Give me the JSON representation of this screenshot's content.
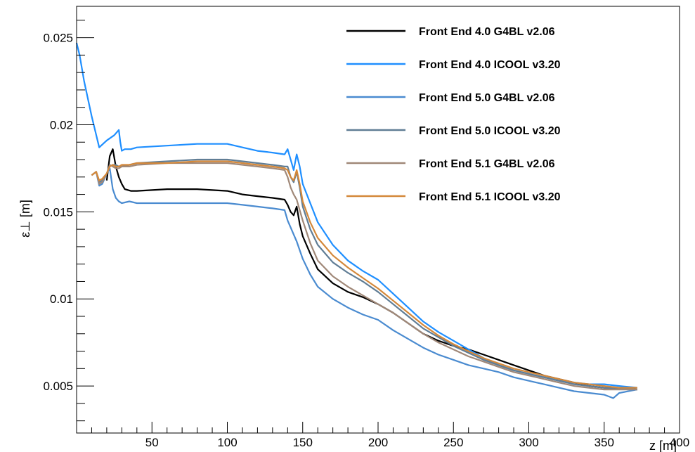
{
  "chart_data": {
    "type": "line",
    "title": "",
    "xlabel": "z [m]",
    "ylabel": "ε⊥ [m]",
    "xlim": [
      0,
      400
    ],
    "ylim": [
      0.0023,
      0.0268
    ],
    "x_ticks": [
      50,
      100,
      150,
      200,
      250,
      300,
      350,
      400
    ],
    "x_tick_labels": [
      "50",
      "100",
      "150",
      "200",
      "250",
      "300",
      "350",
      "400"
    ],
    "y_ticks": [
      0.005,
      0.01,
      0.015,
      0.02,
      0.025
    ],
    "y_tick_labels": [
      "0.005",
      "0.01",
      "0.015",
      "0.02",
      "0.025"
    ],
    "grid": false,
    "legend_position": "top-right",
    "series": [
      {
        "name": "Front End 4.0 G4BL v2.06",
        "color": "#000000",
        "x": [
          20,
          22,
          24,
          26,
          28,
          30,
          32,
          36,
          40,
          60,
          80,
          100,
          110,
          120,
          130,
          138,
          140,
          142,
          144,
          146,
          148,
          150,
          155,
          160,
          170,
          180,
          190,
          200,
          210,
          220,
          230,
          240,
          250,
          260,
          270,
          280,
          290,
          300,
          310,
          320,
          330,
          340,
          350,
          360,
          372
        ],
        "y": [
          0.0168,
          0.0182,
          0.0186,
          0.0176,
          0.017,
          0.0166,
          0.0163,
          0.0162,
          0.0162,
          0.0163,
          0.0163,
          0.0162,
          0.016,
          0.0159,
          0.0158,
          0.0157,
          0.0154,
          0.015,
          0.0148,
          0.0153,
          0.0143,
          0.0136,
          0.0126,
          0.0117,
          0.0109,
          0.0104,
          0.0101,
          0.0097,
          0.0092,
          0.0086,
          0.008,
          0.0076,
          0.0073,
          0.0071,
          0.0068,
          0.0065,
          0.0062,
          0.0059,
          0.0056,
          0.0054,
          0.0052,
          0.005,
          0.0049,
          0.0049,
          0.0048
        ]
      },
      {
        "name": "Front End 4.0 ICOOL v3.20",
        "color": "#1f8fff",
        "x": [
          0,
          2,
          5,
          10,
          15,
          20,
          25,
          28,
          29,
          30,
          32,
          36,
          40,
          60,
          80,
          100,
          110,
          120,
          130,
          138,
          140,
          142,
          144,
          146,
          148,
          150,
          155,
          160,
          170,
          180,
          190,
          200,
          210,
          220,
          230,
          240,
          250,
          260,
          270,
          280,
          290,
          300,
          310,
          320,
          330,
          340,
          350,
          360,
          372
        ],
        "y": [
          0.0247,
          0.024,
          0.0225,
          0.0205,
          0.0187,
          0.0191,
          0.0194,
          0.0197,
          0.019,
          0.0185,
          0.0186,
          0.0186,
          0.0187,
          0.0188,
          0.0189,
          0.0189,
          0.0187,
          0.0185,
          0.0184,
          0.0183,
          0.0186,
          0.018,
          0.0174,
          0.0183,
          0.0176,
          0.0166,
          0.0155,
          0.0144,
          0.0131,
          0.0122,
          0.0116,
          0.0111,
          0.0103,
          0.0095,
          0.0087,
          0.0081,
          0.0076,
          0.0071,
          0.0066,
          0.0062,
          0.0059,
          0.0057,
          0.0055,
          0.0053,
          0.0052,
          0.0051,
          0.0051,
          0.005,
          0.0049
        ]
      },
      {
        "name": "Front End 5.0 G4BL v2.06",
        "color": "#4a8bd0",
        "x": [
          10,
          13,
          15,
          17,
          20,
          22,
          24,
          26,
          28,
          30,
          35,
          40,
          60,
          80,
          100,
          110,
          120,
          130,
          138,
          140,
          142,
          144,
          146,
          148,
          150,
          155,
          160,
          170,
          180,
          190,
          200,
          210,
          220,
          230,
          240,
          250,
          260,
          270,
          280,
          290,
          300,
          310,
          320,
          330,
          340,
          350,
          356,
          360,
          372
        ],
        "y": [
          0.0171,
          0.0173,
          0.0165,
          0.0166,
          0.0172,
          0.0175,
          0.0163,
          0.0158,
          0.0156,
          0.0155,
          0.0156,
          0.0155,
          0.0155,
          0.0155,
          0.0155,
          0.0154,
          0.0153,
          0.0152,
          0.0151,
          0.0145,
          0.0141,
          0.0137,
          0.0133,
          0.0128,
          0.0123,
          0.0114,
          0.0107,
          0.01,
          0.0095,
          0.0091,
          0.0088,
          0.0082,
          0.0077,
          0.0072,
          0.0068,
          0.0065,
          0.0062,
          0.006,
          0.0058,
          0.0055,
          0.0053,
          0.0051,
          0.0049,
          0.0047,
          0.0046,
          0.0045,
          0.0043,
          0.0046,
          0.0048
        ]
      },
      {
        "name": "Front End 5.0 ICOOL v3.20",
        "color": "#607d95",
        "x": [
          10,
          13,
          15,
          17,
          20,
          22,
          24,
          26,
          28,
          30,
          35,
          40,
          60,
          80,
          100,
          110,
          120,
          130,
          138,
          140,
          142,
          144,
          146,
          148,
          150,
          155,
          160,
          170,
          180,
          190,
          200,
          210,
          220,
          230,
          240,
          250,
          260,
          270,
          280,
          290,
          300,
          310,
          320,
          330,
          340,
          350,
          360,
          372
        ],
        "y": [
          0.0171,
          0.0173,
          0.0167,
          0.0168,
          0.0172,
          0.0176,
          0.0177,
          0.0177,
          0.0176,
          0.0176,
          0.0177,
          0.0178,
          0.0179,
          0.018,
          0.018,
          0.0179,
          0.0178,
          0.0177,
          0.0176,
          0.0176,
          0.017,
          0.0167,
          0.0173,
          0.0164,
          0.0153,
          0.014,
          0.0131,
          0.0121,
          0.0115,
          0.011,
          0.0104,
          0.0097,
          0.009,
          0.0083,
          0.0078,
          0.0073,
          0.0069,
          0.0065,
          0.0062,
          0.0059,
          0.0057,
          0.0055,
          0.0053,
          0.0051,
          0.005,
          0.0049,
          0.0049,
          0.0048
        ]
      },
      {
        "name": "Front End 5.1 G4BL v2.06",
        "color": "#a08878",
        "x": [
          10,
          13,
          15,
          17,
          20,
          22,
          24,
          26,
          28,
          30,
          35,
          40,
          60,
          80,
          100,
          110,
          120,
          130,
          138,
          140,
          142,
          144,
          146,
          148,
          150,
          155,
          160,
          170,
          180,
          190,
          200,
          210,
          220,
          230,
          240,
          250,
          260,
          270,
          280,
          290,
          300,
          310,
          320,
          330,
          340,
          350,
          360,
          372
        ],
        "y": [
          0.0171,
          0.0173,
          0.0166,
          0.0167,
          0.0172,
          0.0177,
          0.0176,
          0.0175,
          0.0175,
          0.0176,
          0.0176,
          0.0177,
          0.0178,
          0.0178,
          0.0178,
          0.0177,
          0.0176,
          0.0175,
          0.0174,
          0.017,
          0.0164,
          0.016,
          0.0157,
          0.0151,
          0.0145,
          0.0132,
          0.0122,
          0.0113,
          0.0107,
          0.0102,
          0.0097,
          0.0092,
          0.0086,
          0.008,
          0.0075,
          0.0071,
          0.0067,
          0.0064,
          0.0061,
          0.0058,
          0.0056,
          0.0054,
          0.0052,
          0.005,
          0.0049,
          0.0048,
          0.0048,
          0.0048
        ]
      },
      {
        "name": "Front End 5.1 ICOOL v3.20",
        "color": "#d4883a",
        "x": [
          10,
          13,
          15,
          17,
          20,
          22,
          24,
          26,
          28,
          30,
          35,
          40,
          60,
          80,
          100,
          110,
          120,
          130,
          138,
          140,
          142,
          144,
          146,
          148,
          150,
          155,
          160,
          170,
          180,
          190,
          200,
          210,
          220,
          230,
          240,
          250,
          260,
          270,
          280,
          290,
          300,
          310,
          320,
          330,
          340,
          350,
          360,
          372
        ],
        "y": [
          0.0171,
          0.0173,
          0.0168,
          0.0169,
          0.0172,
          0.0176,
          0.0177,
          0.0176,
          0.0176,
          0.0177,
          0.0177,
          0.0178,
          0.0178,
          0.0179,
          0.0179,
          0.0178,
          0.0177,
          0.0176,
          0.0175,
          0.0174,
          0.017,
          0.0168,
          0.0174,
          0.0166,
          0.0156,
          0.0144,
          0.0135,
          0.0125,
          0.0118,
          0.0112,
          0.0106,
          0.0099,
          0.0092,
          0.0085,
          0.0079,
          0.0074,
          0.007,
          0.0066,
          0.0063,
          0.006,
          0.0058,
          0.0056,
          0.0054,
          0.0052,
          0.0051,
          0.005,
          0.0049,
          0.0049
        ]
      }
    ]
  }
}
